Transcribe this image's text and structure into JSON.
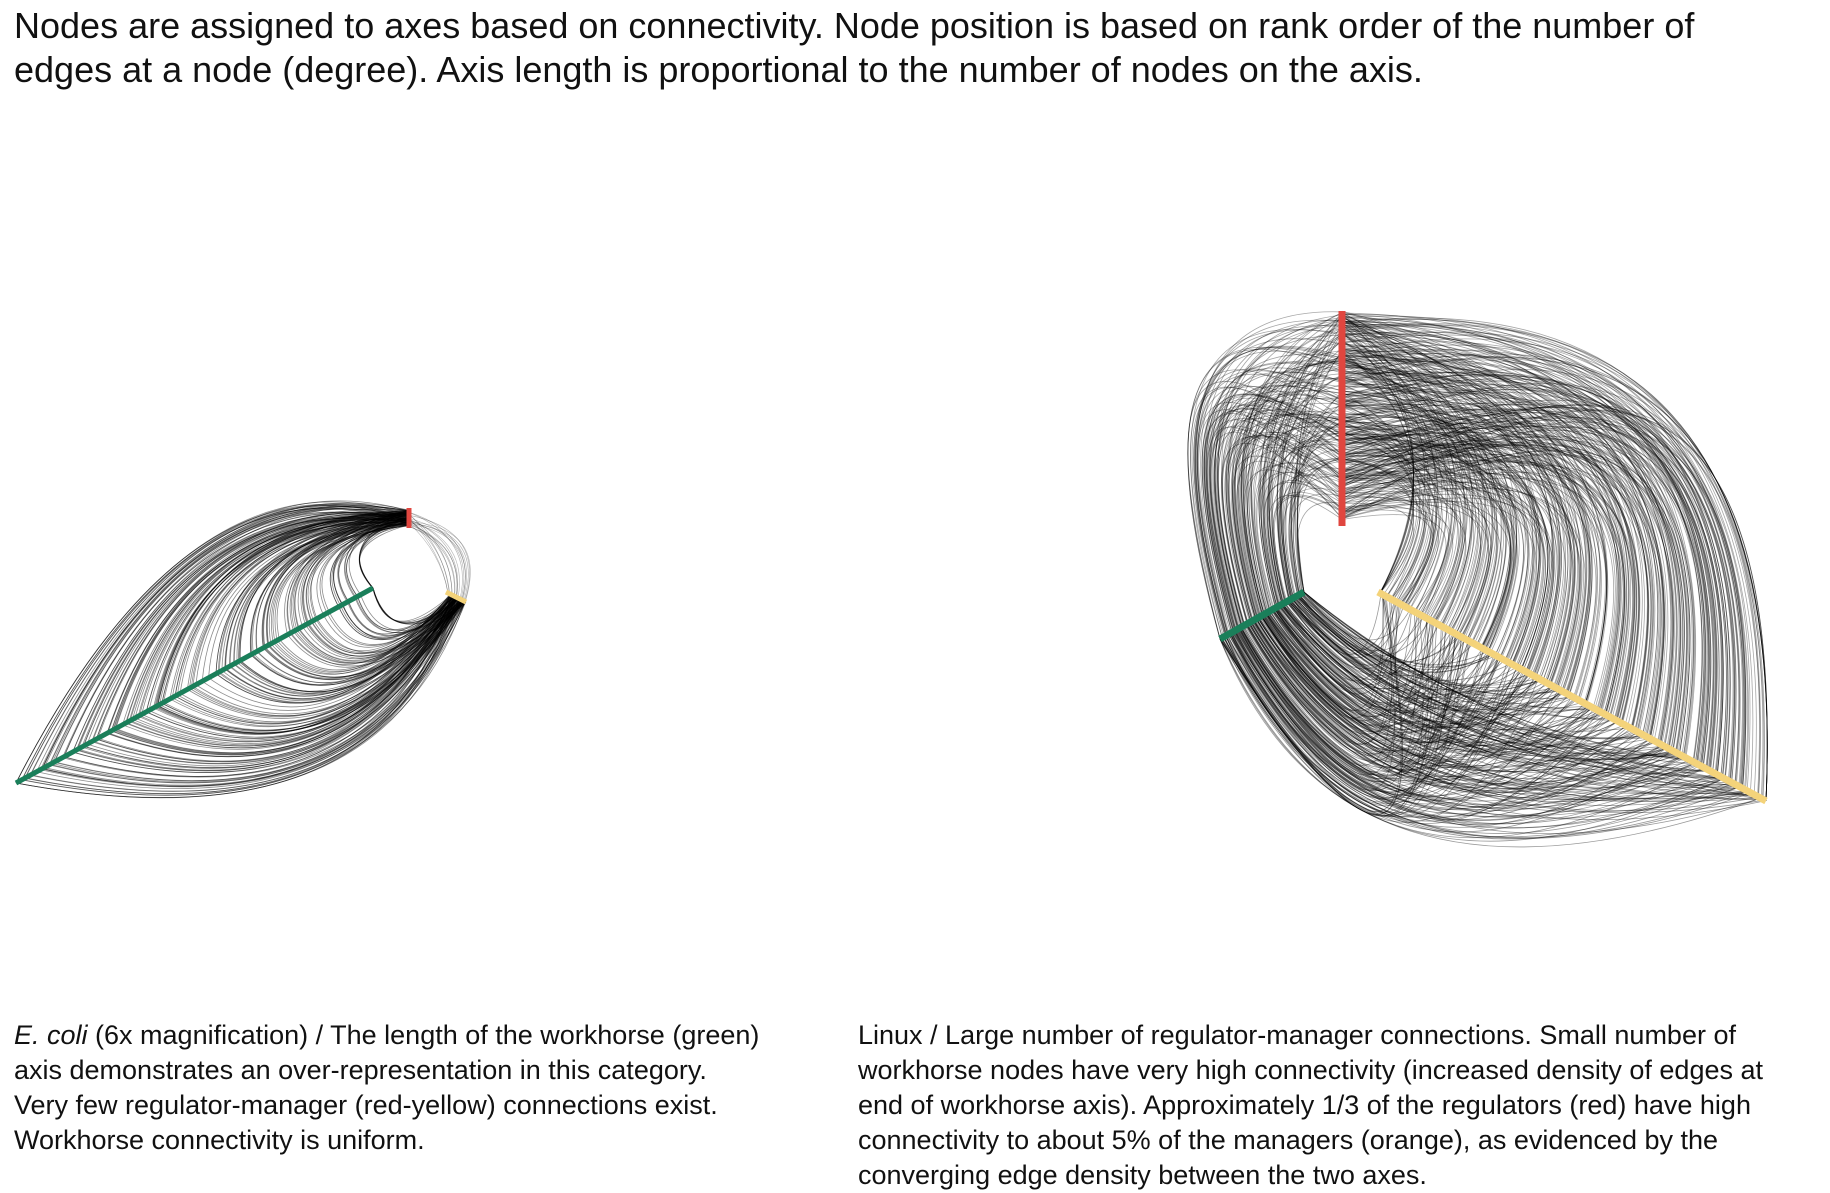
{
  "header": {
    "lines": [
      "Nodes are assigned to axes based on connectivity. Node position is based on rank order of the number of",
      "edges at a node (degree). Axis length is proportional to the number of nodes on the axis."
    ]
  },
  "colors": {
    "regulator_axis": "#e0463f",
    "manager_axis": "#f4d37a",
    "workhorse_axis": "#1a7f5a",
    "edges": "#000000"
  },
  "panels": {
    "left": {
      "caption_italic": "E. coli",
      "caption_rest": " (6x magnification) / The length of the workhorse (green)",
      "caption_lines": [
        "axis demonstrates an over-representation in this category.",
        "Very few regulator-manager (red-yellow) connections exist.",
        "Workhorse connectivity is uniform."
      ]
    },
    "right": {
      "caption_lines": [
        "Linux / Large number of regulator-manager connections. Small number of",
        "workhorse nodes have very high connectivity (increased density of edges at",
        "end of workhorse axis). Approximately 1/3 of the regulators (red) have high",
        "connectivity to about 5% of the managers (orange), as evidenced by the",
        "converging edge density between the two axes."
      ]
    }
  }
}
